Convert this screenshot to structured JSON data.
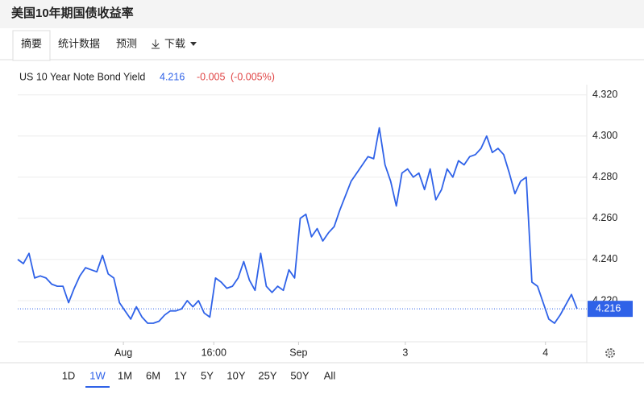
{
  "header": {
    "title": "美国10年期国债收益率",
    "tabs": [
      "摘要",
      "统计数据",
      "预测",
      "下载"
    ]
  },
  "chart_data": {
    "type": "line",
    "legend_name": "US 10 Year Note Bond Yield",
    "change": "-0.005",
    "change_percent": "(-0.005%)",
    "series": [
      {
        "name": "US 10 Year Note Bond Yield",
        "color": "#2f62e8",
        "values": [
          4.24,
          4.238,
          4.243,
          4.231,
          4.232,
          4.231,
          4.228,
          4.227,
          4.227,
          4.219,
          4.226,
          4.232,
          4.236,
          4.235,
          4.234,
          4.242,
          4.233,
          4.231,
          4.219,
          4.215,
          4.211,
          4.217,
          4.212,
          4.209,
          4.209,
          4.21,
          4.213,
          4.215,
          4.215,
          4.216,
          4.22,
          4.217,
          4.22,
          4.214,
          4.212,
          4.231,
          4.229,
          4.226,
          4.227,
          4.231,
          4.239,
          4.23,
          4.225,
          4.243,
          4.227,
          4.224,
          4.227,
          4.225,
          4.235,
          4.231,
          4.26,
          4.262,
          4.251,
          4.255,
          4.249,
          4.253,
          4.256,
          4.264,
          4.271,
          4.278,
          4.282,
          4.286,
          4.29,
          4.289,
          4.304,
          4.286,
          4.278,
          4.266,
          4.282,
          4.284,
          4.28,
          4.282,
          4.274,
          4.284,
          4.269,
          4.274,
          4.284,
          4.28,
          4.288,
          4.286,
          4.29,
          4.291,
          4.294,
          4.3,
          4.292,
          4.294,
          4.291,
          4.282,
          4.272,
          4.278,
          4.28,
          4.229,
          4.227,
          4.219,
          4.211,
          4.209,
          4.213,
          4.218,
          4.223,
          4.216
        ]
      }
    ],
    "xlim": [
      0,
      99
    ],
    "xticks": [
      {
        "value": 18.7,
        "label": "Aug"
      },
      {
        "value": 34.7,
        "label": "16:00"
      },
      {
        "value": 49.7,
        "label": "Sep"
      },
      {
        "value": 68.6,
        "label": "3"
      },
      {
        "value": 93.4,
        "label": "4"
      }
    ],
    "ylim": [
      4.2,
      4.325
    ],
    "yticks": [
      {
        "value": 4.22,
        "label": "4.220"
      },
      {
        "value": 4.24,
        "label": "4.240"
      },
      {
        "value": 4.26,
        "label": "4.260"
      },
      {
        "value": 4.28,
        "label": "4.280"
      },
      {
        "value": 4.3,
        "label": "4.300"
      },
      {
        "value": 4.32,
        "label": "4.320"
      }
    ],
    "grid": true
  },
  "ranges": {
    "options": [
      "1D",
      "1W",
      "1M",
      "6M",
      "1Y",
      "5Y",
      "10Y",
      "25Y",
      "50Y",
      "All"
    ],
    "selected": 1
  }
}
